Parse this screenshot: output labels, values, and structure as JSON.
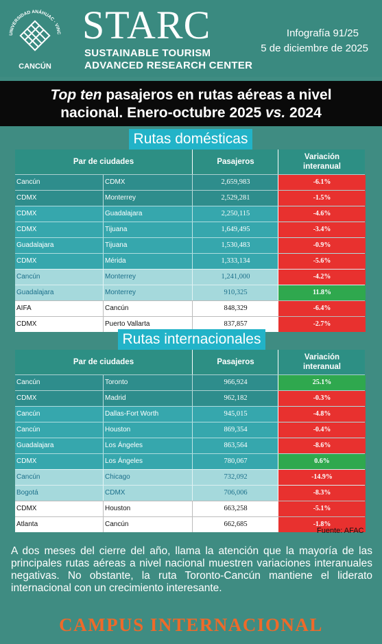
{
  "header": {
    "logo_ring_text": "UNIVERSIDAD ANÁHUAC · VINCE IN BONO MALUM",
    "logo_city": "CANCÚN",
    "brand": "STARC",
    "subtitle_line1": "SUSTAINABLE TOURISM",
    "subtitle_line2": "ADVANCED RESEARCH CENTER",
    "infografia": "Infografía 91/25",
    "date": "5 de diciembre de 2025"
  },
  "title": {
    "line1_em": "Top ten",
    "line1_rest": " pasajeros en rutas aéreas a nivel",
    "line2_a": "nacional. Enero-octubre 2025 ",
    "line2_em": "vs.",
    "line2_b": " 2024"
  },
  "domestic": {
    "label": "Rutas domésticas",
    "headers": {
      "pair": "Par de ciudades",
      "pass": "Pasajeros",
      "var_l1": "Variación",
      "var_l2": "interanual"
    },
    "rows": [
      {
        "a": "Cancún",
        "b": "CDMX",
        "p": "2,659,983",
        "v": "-6.1%",
        "tone": "t-dk",
        "vc": "neg"
      },
      {
        "a": "CDMX",
        "b": "Monterrey",
        "p": "2,529,281",
        "v": "-1.5%",
        "tone": "t-dk",
        "vc": "neg"
      },
      {
        "a": "CDMX",
        "b": "Guadalajara",
        "p": "2,250,115",
        "v": "-4.6%",
        "tone": "t-md",
        "vc": "neg"
      },
      {
        "a": "CDMX",
        "b": "Tijuana",
        "p": "1,649,495",
        "v": "-3.4%",
        "tone": "t-md",
        "vc": "neg"
      },
      {
        "a": "Guadalajara",
        "b": "Tijuana",
        "p": "1,530,483",
        "v": "-0.9%",
        "tone": "t-md",
        "vc": "neg"
      },
      {
        "a": "CDMX",
        "b": "Mérida",
        "p": "1,333,134",
        "v": "-5.6%",
        "tone": "t-md",
        "vc": "neg"
      },
      {
        "a": "Cancún",
        "b": "Monterrey",
        "p": "1,241,000",
        "v": "-4.2%",
        "tone": "t-lt",
        "vc": "neg"
      },
      {
        "a": "Guadalajara",
        "b": "Monterrey",
        "p": "910,325",
        "v": "11.8%",
        "tone": "t-lt",
        "vc": "pos"
      },
      {
        "a": "AIFA",
        "b": "Cancún",
        "p": "848,329",
        "v": "-6.4%",
        "tone": "t-wh",
        "vc": "neg"
      },
      {
        "a": "CDMX",
        "b": "Puerto Vallarta",
        "p": "837,857",
        "v": "-2.7%",
        "tone": "t-wh",
        "vc": "neg"
      }
    ]
  },
  "international": {
    "label": "Rutas internacionales",
    "headers": {
      "pair": "Par de ciudades",
      "pass": "Pasajeros",
      "var_l1": "Variación",
      "var_l2": "interanual"
    },
    "rows": [
      {
        "a": "Cancún",
        "b": "Toronto",
        "p": "966,924",
        "v": "25.1%",
        "tone": "t-dk",
        "vc": "pos"
      },
      {
        "a": "CDMX",
        "b": "Madrid",
        "p": "962,182",
        "v": "-0.3%",
        "tone": "t-dk",
        "vc": "neg"
      },
      {
        "a": "Cancún",
        "b": "Dallas-Fort Worth",
        "p": "945,015",
        "v": "-4.8%",
        "tone": "t-md",
        "vc": "neg"
      },
      {
        "a": "Cancún",
        "b": "Houston",
        "p": "869,354",
        "v": "-0.4%",
        "tone": "t-md",
        "vc": "neg"
      },
      {
        "a": "Guadalajara",
        "b": "Los Ángeles",
        "p": "863,564",
        "v": "-8.6%",
        "tone": "t-md",
        "vc": "neg"
      },
      {
        "a": "CDMX",
        "b": "Los Ángeles",
        "p": "780,067",
        "v": "0.6%",
        "tone": "t-md",
        "vc": "pos"
      },
      {
        "a": "Cancún",
        "b": "Chicago",
        "p": "732,092",
        "v": "-14.9%",
        "tone": "t-lt",
        "vc": "neg"
      },
      {
        "a": "Bogotá",
        "b": "CDMX",
        "p": "706,006",
        "v": "-8.3%",
        "tone": "t-lt",
        "vc": "neg"
      },
      {
        "a": "CDMX",
        "b": "Houston",
        "p": "663,258",
        "v": "-5.1%",
        "tone": "t-wh",
        "vc": "neg"
      },
      {
        "a": "Atlanta",
        "b": "Cancún",
        "p": "662,685",
        "v": "-1.8%",
        "tone": "t-wh",
        "vc": "neg"
      }
    ]
  },
  "source": "Fuente: AFAC",
  "paragraph": "A dos meses del cierre del año, llama la atención que la mayoría de las principales rutas aéreas a nivel nacional muestren variaciones interanuales negativas. No obstante, la ruta Toronto-Cancún mantiene el liderato internacional con un crecimiento interesante.",
  "footer": "CAMPUS INTERNACIONAL",
  "colors": {
    "negative": "#e8312f",
    "positive": "#2fa84e",
    "accent_orange": "#ee6a2a",
    "teal": "#3a8a80"
  }
}
